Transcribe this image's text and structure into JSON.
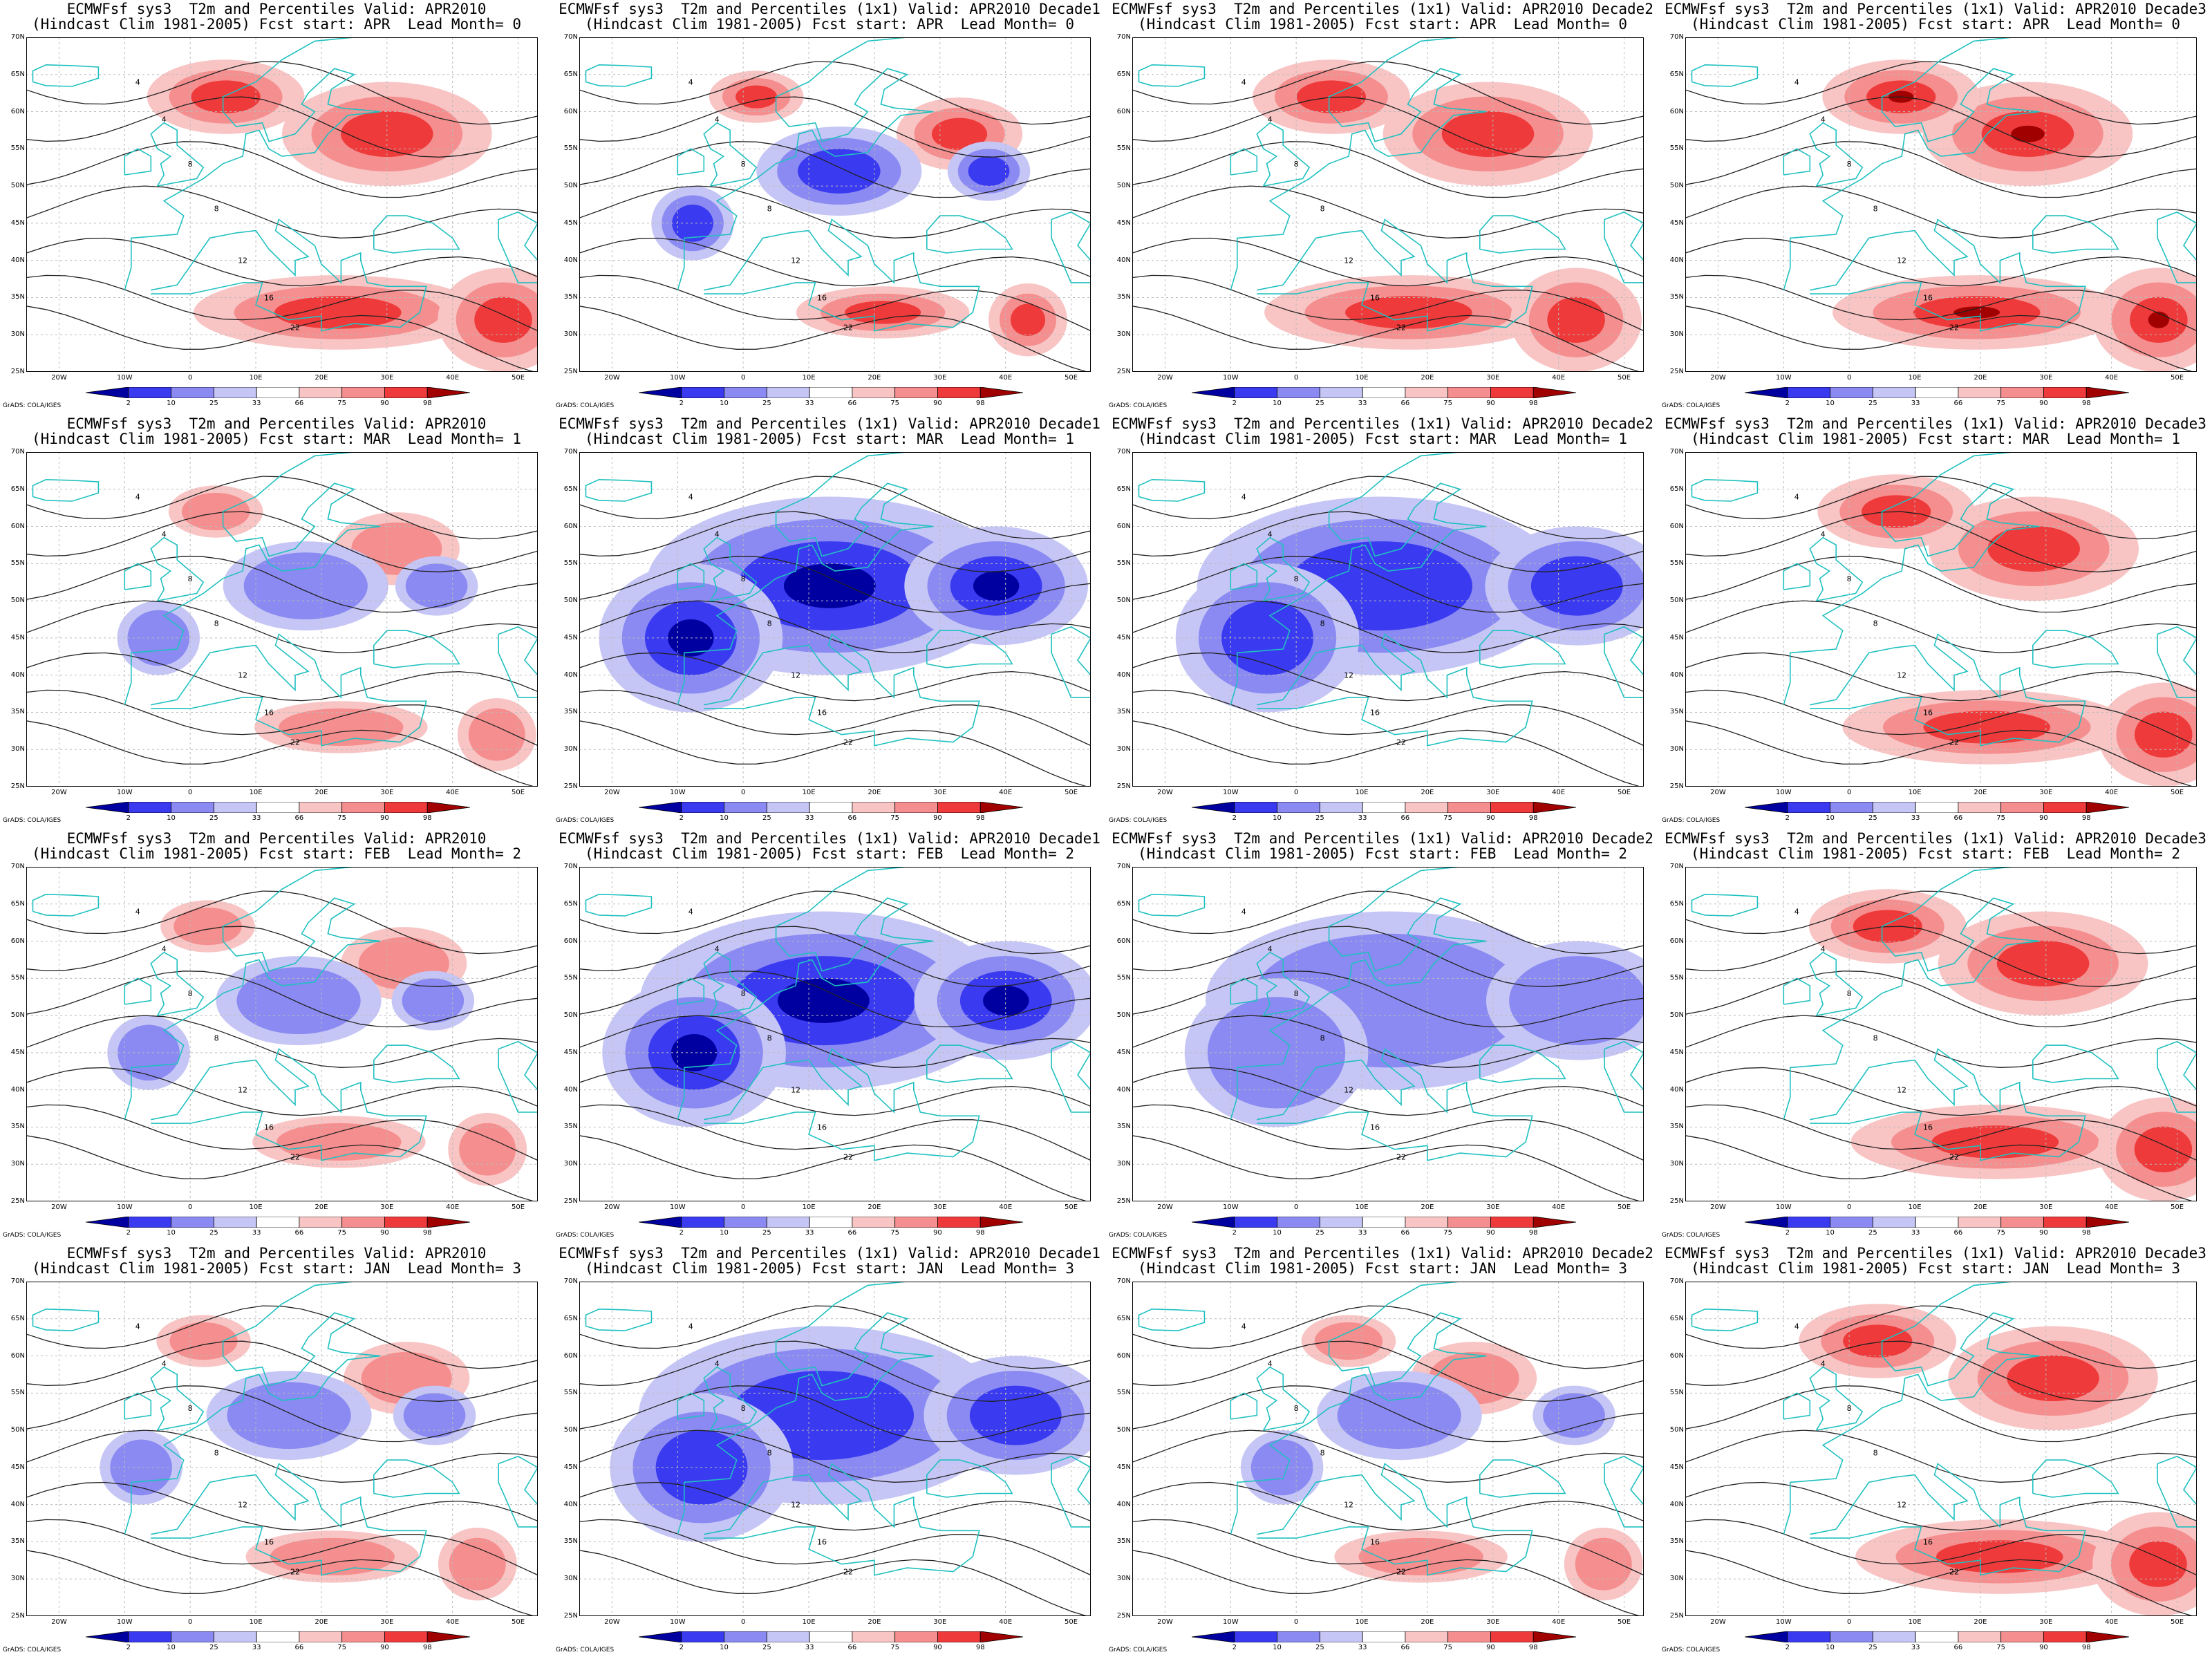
{
  "panels": [
    {
      "title_line1": "ECMWFsf sys3  T2m and Percentiles Valid: APR2010",
      "title_line2": "(Hindcast Clim 1981-2005) Fcst start: APR  Lead Month= 0",
      "anomaly": "warm",
      "strength": 2
    },
    {
      "title_line1": "ECMWFsf sys3  T2m and Percentiles (1x1) Valid: APR2010 Decade1",
      "title_line2": "(Hindcast Clim 1981-2005) Fcst start: APR  Lead Month= 0",
      "anomaly": "mixed",
      "strength": 2
    },
    {
      "title_line1": "ECMWFsf sys3  T2m and Percentiles (1x1) Valid: APR2010 Decade2",
      "title_line2": "(Hindcast Clim 1981-2005) Fcst start: APR  Lead Month= 0",
      "anomaly": "warm",
      "strength": 2
    },
    {
      "title_line1": "ECMWFsf sys3  T2m and Percentiles (1x1) Valid: APR2010 Decade3",
      "title_line2": "(Hindcast Clim 1981-2005) Fcst start: APR  Lead Month= 0",
      "anomaly": "warm",
      "strength": 3
    },
    {
      "title_line1": "ECMWFsf sys3  T2m and Percentiles Valid: APR2010",
      "title_line2": "(Hindcast Clim 1981-2005) Fcst start: MAR  Lead Month= 1",
      "anomaly": "mixed",
      "strength": 1
    },
    {
      "title_line1": "ECMWFsf sys3  T2m and Percentiles (1x1) Valid: APR2010 Decade1",
      "title_line2": "(Hindcast Clim 1981-2005) Fcst start: MAR  Lead Month= 1",
      "anomaly": "cold",
      "strength": 3
    },
    {
      "title_line1": "ECMWFsf sys3  T2m and Percentiles (1x1) Valid: APR2010 Decade2",
      "title_line2": "(Hindcast Clim 1981-2005) Fcst start: MAR  Lead Month= 1",
      "anomaly": "cold",
      "strength": 2
    },
    {
      "title_line1": "ECMWFsf sys3  T2m and Percentiles (1x1) Valid: APR2010 Decade3",
      "title_line2": "(Hindcast Clim 1981-2005) Fcst start: MAR  Lead Month= 1",
      "anomaly": "warm",
      "strength": 2
    },
    {
      "title_line1": "ECMWFsf sys3  T2m and Percentiles Valid: APR2010",
      "title_line2": "(Hindcast Clim 1981-2005) Fcst start: FEB  Lead Month= 2",
      "anomaly": "mixed",
      "strength": 1
    },
    {
      "title_line1": "ECMWFsf sys3  T2m and Percentiles (1x1) Valid: APR2010 Decade1",
      "title_line2": "(Hindcast Clim 1981-2005) Fcst start: FEB  Lead Month= 2",
      "anomaly": "cold",
      "strength": 3
    },
    {
      "title_line1": "ECMWFsf sys3  T2m and Percentiles (1x1) Valid: APR2010 Decade2",
      "title_line2": "(Hindcast Clim 1981-2005) Fcst start: FEB  Lead Month= 2",
      "anomaly": "cold",
      "strength": 1
    },
    {
      "title_line1": "ECMWFsf sys3  T2m and Percentiles (1x1) Valid: APR2010 Decade3",
      "title_line2": "(Hindcast Clim 1981-2005) Fcst start: FEB  Lead Month= 2",
      "anomaly": "warm",
      "strength": 2
    },
    {
      "title_line1": "ECMWFsf sys3  T2m and Percentiles Valid: APR2010",
      "title_line2": "(Hindcast Clim 1981-2005) Fcst start: JAN  Lead Month= 3",
      "anomaly": "mixed",
      "strength": 1
    },
    {
      "title_line1": "ECMWFsf sys3  T2m and Percentiles (1x1) Valid: APR2010 Decade1",
      "title_line2": "(Hindcast Clim 1981-2005) Fcst start: JAN  Lead Month= 3",
      "anomaly": "cold",
      "strength": 2
    },
    {
      "title_line1": "ECMWFsf sys3  T2m and Percentiles (1x1) Valid: APR2010 Decade2",
      "title_line2": "(Hindcast Clim 1981-2005) Fcst start: JAN  Lead Month= 3",
      "anomaly": "mixed",
      "strength": 1
    },
    {
      "title_line1": "ECMWFsf sys3  T2m and Percentiles (1x1) Valid: APR2010 Decade3",
      "title_line2": "(Hindcast Clim 1981-2005) Fcst start: JAN  Lead Month= 3",
      "anomaly": "warm",
      "strength": 2
    }
  ],
  "lat_labels": [
    "70N",
    "65N",
    "60N",
    "55N",
    "50N",
    "45N",
    "40N",
    "35N",
    "30N",
    "25N"
  ],
  "lon_labels": [
    "20W",
    "10W",
    "0",
    "10E",
    "20E",
    "30E",
    "40E",
    "50E"
  ],
  "colorbar_labels": [
    "2",
    "10",
    "25",
    "33",
    "66",
    "75",
    "90",
    "98"
  ],
  "colorbar_colors": [
    "#0000a0",
    "#3a3af0",
    "#8a8af2",
    "#c6c6f6",
    "#ffffff",
    "#f8c4c4",
    "#f58e8e",
    "#ee3a3a",
    "#a00000"
  ],
  "credit": "GrADS: COLA/IGES",
  "coast_color": "#20c0c0"
}
